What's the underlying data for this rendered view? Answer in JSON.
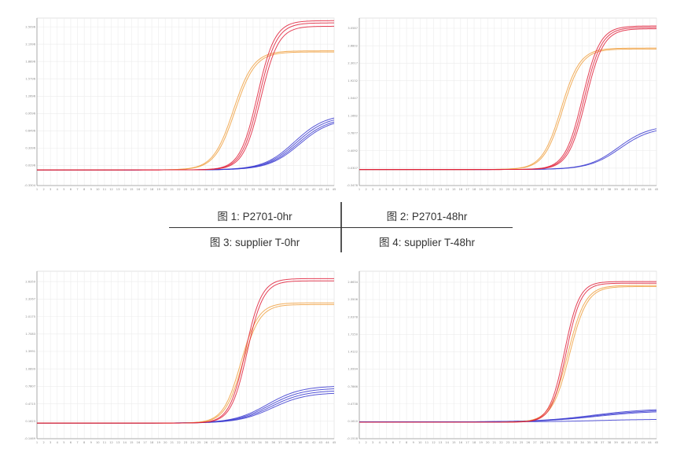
{
  "captions": [
    "图 1: P2701-0hr",
    "图 2: P2701-48hr",
    "图 3: supplier T-0hr",
    "图 4: supplier T-48hr"
  ],
  "colors": {
    "red": "#e0203a",
    "orange": "#f0a040",
    "blue": "#3a3ad0",
    "grid": "#ececec",
    "axis": "#9a9a9a"
  },
  "chart_data": [
    {
      "type": "line",
      "title": "P2701-0hr",
      "xlim": [
        1,
        45
      ],
      "x_ticks": [
        1,
        2,
        3,
        4,
        5,
        6,
        7,
        8,
        9,
        10,
        11,
        12,
        13,
        14,
        15,
        16,
        17,
        18,
        19,
        20,
        21,
        22,
        23,
        24,
        25,
        26,
        27,
        28,
        29,
        30,
        31,
        32,
        33,
        34,
        35,
        36,
        37,
        38,
        39,
        40,
        41,
        42,
        43,
        44,
        45
      ],
      "ylim": [
        -0.3304,
        2.666
      ],
      "y_ticks": [
        {
          "v": -0.3304,
          "label": "-0.3304"
        },
        {
          "v": 0.0296,
          "label": "0.0296"
        },
        {
          "v": 0.3396,
          "label": "0.3396"
        },
        {
          "v": 0.6496,
          "label": "0.6496"
        },
        {
          "v": 0.9596,
          "label": "0.9596"
        },
        {
          "v": 1.2696,
          "label": "1.2696"
        },
        {
          "v": 1.5796,
          "label": "1.5796"
        },
        {
          "v": 1.8896,
          "label": "1.8896"
        },
        {
          "v": 2.1996,
          "label": "2.1996"
        },
        {
          "v": 2.5096,
          "label": "2.5096"
        }
      ],
      "series": [
        {
          "name": "blue",
          "color": "#3a3ad0",
          "baseline": -0.05,
          "mid": 39.5,
          "slope": 2.3,
          "amplitudes": [
            1.0,
            0.97,
            0.94,
            0.92
          ]
        },
        {
          "name": "orange",
          "color": "#f0a040",
          "baseline": -0.05,
          "mid": 30.2,
          "slope": 1.5,
          "amplitudes": [
            2.13,
            2.11
          ]
        },
        {
          "name": "red",
          "color": "#e0203a",
          "baseline": -0.05,
          "mid": 33.9,
          "slope": 1.3,
          "amplitudes": [
            2.67,
            2.63,
            2.57
          ]
        }
      ]
    },
    {
      "type": "line",
      "title": "P2701-48hr",
      "xlim": [
        1,
        45
      ],
      "x_ticks": [
        1,
        2,
        3,
        4,
        5,
        6,
        7,
        8,
        9,
        10,
        11,
        12,
        13,
        14,
        15,
        16,
        17,
        18,
        19,
        20,
        21,
        22,
        23,
        24,
        25,
        26,
        27,
        28,
        29,
        30,
        31,
        32,
        33,
        34,
        35,
        36,
        37,
        38,
        39,
        40,
        41,
        42,
        43,
        44,
        45
      ],
      "ylim": [
        -0.3478,
        3.28
      ],
      "y_ticks": [
        {
          "v": -0.3478,
          "label": "-0.3478"
        },
        {
          "v": 0.0307,
          "label": "0.0307"
        },
        {
          "v": 0.4092,
          "label": "0.4092"
        },
        {
          "v": 0.7877,
          "label": "0.7877"
        },
        {
          "v": 1.1662,
          "label": "1.1662"
        },
        {
          "v": 1.5447,
          "label": "1.5447"
        },
        {
          "v": 1.9232,
          "label": "1.9232"
        },
        {
          "v": 2.3017,
          "label": "2.3017"
        },
        {
          "v": 2.6802,
          "label": "2.6802"
        },
        {
          "v": 3.0587,
          "label": "3.0587"
        }
      ],
      "series": [
        {
          "name": "blue",
          "color": "#3a3ad0",
          "baseline": 0.0,
          "mid": 39.5,
          "slope": 2.3,
          "amplitudes": [
            0.96,
            0.92
          ]
        },
        {
          "name": "orange",
          "color": "#f0a040",
          "baseline": 0.0,
          "mid": 31.0,
          "slope": 1.4,
          "amplitudes": [
            2.63,
            2.61
          ]
        },
        {
          "name": "red",
          "color": "#e0203a",
          "baseline": 0.0,
          "mid": 34.3,
          "slope": 1.3,
          "amplitudes": [
            3.11,
            3.08,
            3.05
          ]
        }
      ]
    },
    {
      "type": "line",
      "title": "supplier T-0hr",
      "xlim": [
        1,
        45
      ],
      "x_ticks": [
        1,
        2,
        3,
        4,
        5,
        6,
        7,
        8,
        9,
        10,
        11,
        12,
        13,
        14,
        15,
        16,
        17,
        18,
        19,
        20,
        21,
        22,
        23,
        24,
        25,
        26,
        27,
        28,
        29,
        30,
        31,
        32,
        33,
        34,
        35,
        36,
        37,
        38,
        39,
        40,
        41,
        42,
        43,
        44,
        45
      ],
      "ylim": [
        -0.1469,
        2.82
      ],
      "y_ticks": [
        {
          "v": -0.1469,
          "label": "-0.1469"
        },
        {
          "v": 0.1623,
          "label": "0.1623"
        },
        {
          "v": 0.4715,
          "label": "0.4715"
        },
        {
          "v": 0.7807,
          "label": "0.7807"
        },
        {
          "v": 1.0899,
          "label": "1.0899"
        },
        {
          "v": 1.3991,
          "label": "1.3991"
        },
        {
          "v": 1.7083,
          "label": "1.7083"
        },
        {
          "v": 2.0175,
          "label": "2.0175"
        },
        {
          "v": 2.3267,
          "label": "2.3267"
        },
        {
          "v": 2.6359,
          "label": "2.6359"
        }
      ],
      "series": [
        {
          "name": "blue",
          "color": "#3a3ad0",
          "baseline": 0.13,
          "mid": 35.5,
          "slope": 2.5,
          "amplitudes": [
            0.66,
            0.62,
            0.58,
            0.54
          ]
        },
        {
          "name": "orange",
          "color": "#f0a040",
          "baseline": 0.13,
          "mid": 31.3,
          "slope": 1.3,
          "amplitudes": [
            2.13,
            2.1
          ]
        },
        {
          "name": "red",
          "color": "#e0203a",
          "baseline": 0.13,
          "mid": 32.0,
          "slope": 1.2,
          "amplitudes": [
            2.56,
            2.52
          ]
        }
      ]
    },
    {
      "type": "line",
      "title": "supplier T-48hr",
      "xlim": [
        1,
        45
      ],
      "x_ticks": [
        1,
        2,
        3,
        4,
        5,
        6,
        7,
        8,
        9,
        10,
        11,
        12,
        13,
        14,
        15,
        16,
        17,
        18,
        19,
        20,
        21,
        22,
        23,
        24,
        25,
        26,
        27,
        28,
        29,
        30,
        31,
        32,
        33,
        34,
        35,
        36,
        37,
        38,
        39,
        40,
        41,
        42,
        43,
        44,
        45
      ],
      "ylim": [
        -0.1518,
        2.86
      ],
      "y_ticks": [
        {
          "v": -0.1518,
          "label": "-0.1518"
        },
        {
          "v": 0.161,
          "label": "0.1610"
        },
        {
          "v": 0.4738,
          "label": "0.4738"
        },
        {
          "v": 0.7866,
          "label": "0.7866"
        },
        {
          "v": 1.0994,
          "label": "1.0994"
        },
        {
          "v": 1.4122,
          "label": "1.4122"
        },
        {
          "v": 1.725,
          "label": "1.7250"
        },
        {
          "v": 2.0378,
          "label": "2.0378"
        },
        {
          "v": 2.3506,
          "label": "2.3506"
        },
        {
          "v": 2.6634,
          "label": "2.6634"
        }
      ],
      "series": [
        {
          "name": "blue",
          "color": "#3a3ad0",
          "baseline": 0.15,
          "mid": 36.0,
          "slope": 4.0,
          "amplitudes": [
            0.24,
            0.22,
            0.2,
            0.05
          ]
        },
        {
          "name": "orange",
          "color": "#f0a040",
          "baseline": 0.145,
          "mid": 32.0,
          "slope": 1.3,
          "amplitudes": [
            2.46,
            2.44
          ]
        },
        {
          "name": "red",
          "color": "#e0203a",
          "baseline": 0.145,
          "mid": 31.5,
          "slope": 1.1,
          "amplitudes": [
            2.53,
            2.5
          ]
        }
      ]
    }
  ]
}
